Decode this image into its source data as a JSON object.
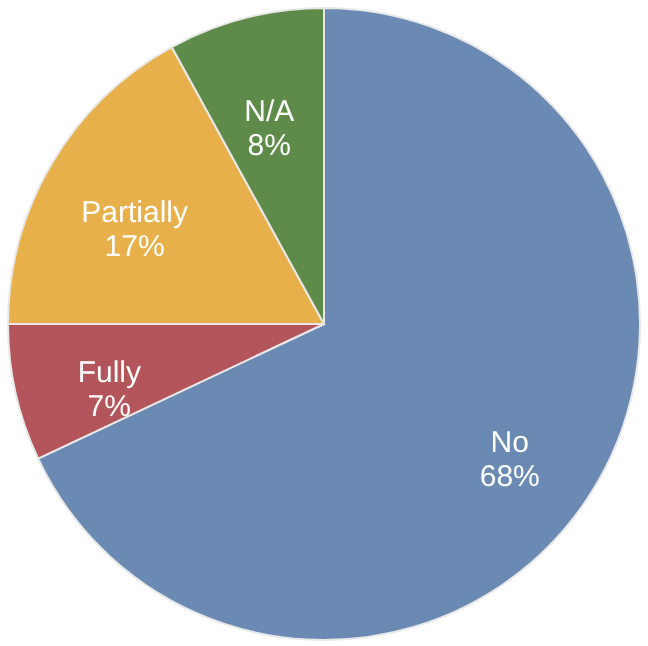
{
  "chart_data": {
    "type": "pie",
    "categories": [
      "No",
      "Fully",
      "Partially",
      "N/A"
    ],
    "values": [
      68,
      7,
      17,
      8
    ],
    "value_labels": [
      "68%",
      "7%",
      "17%",
      "8%"
    ],
    "colors": [
      "#6a89b3",
      "#b4545b",
      "#e8b04a",
      "#5e8b4a"
    ],
    "legend": false
  }
}
